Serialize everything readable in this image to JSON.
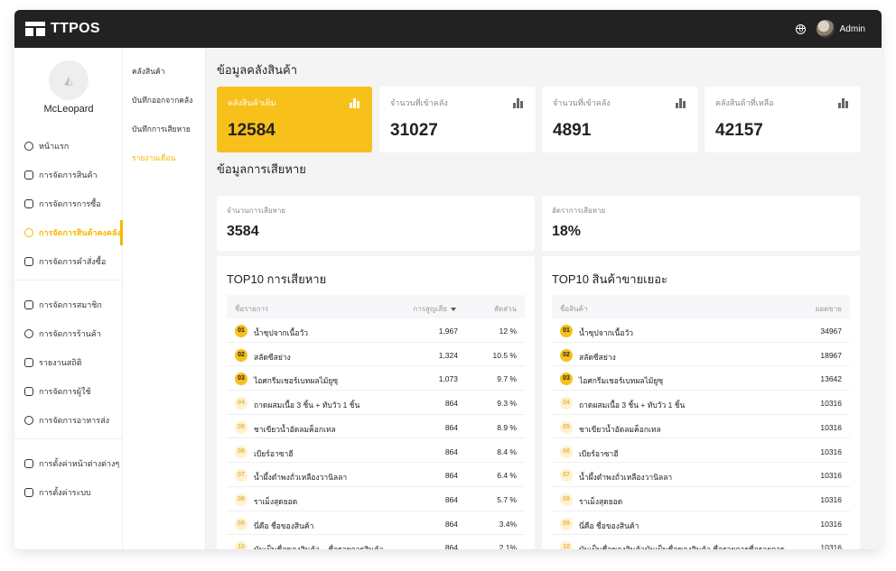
{
  "app": {
    "brand": "TTPOS",
    "user_name": "Admin"
  },
  "profile": {
    "name": "McLeopard"
  },
  "sidebar": {
    "items": [
      {
        "label": "หน้าแรก",
        "icon": "home-icon"
      },
      {
        "label": "การจัดการสินค้า",
        "icon": "box-icon"
      },
      {
        "label": "การจัดการการซื้อ",
        "icon": "cart-icon"
      },
      {
        "label": "การจัดการสินค้าคงคลัง",
        "icon": "warehouse-icon",
        "active": true
      },
      {
        "label": "การจัดการคำสั่งซื้อ",
        "icon": "order-icon"
      },
      {
        "label": "การจัดการสมาชิก",
        "icon": "member-icon"
      },
      {
        "label": "การจัดการร้านค้า",
        "icon": "store-icon"
      },
      {
        "label": "รายงานสถิติ",
        "icon": "report-icon"
      },
      {
        "label": "การจัดการผู้ใช้",
        "icon": "users-icon"
      },
      {
        "label": "การจัดการอาหารส่ง",
        "icon": "delivery-icon"
      },
      {
        "label": "การตั้งค่าหน้าต่างต่างๆ",
        "icon": "screen-settings-icon"
      },
      {
        "label": "การตั้งค่าระบบ",
        "icon": "gear-icon"
      }
    ]
  },
  "subnav": {
    "items": [
      {
        "label": "คลังสินค้า"
      },
      {
        "label": "บันทึกออกจากคลัง"
      },
      {
        "label": "บันทึกการเสียหาย"
      },
      {
        "label": "รายงานเดือน",
        "active": true
      }
    ]
  },
  "inventory": {
    "title": "ข้อมูลคลังสินค้า",
    "cards": [
      {
        "label": "คลังสินค้าเดิม",
        "value": "12584"
      },
      {
        "label": "จำนวนที่เข้าคลัง",
        "value": "31027"
      },
      {
        "label": "จำนวนที่เข้าคลัง",
        "value": "4891"
      },
      {
        "label": "คลังสินค้าที่เหลือ",
        "value": "42157"
      }
    ]
  },
  "damage": {
    "title": "ข้อมูลการเสียหาย",
    "cards": [
      {
        "label": "จำนวนการเสียหาย",
        "value": "3584"
      },
      {
        "label": "อัตราการเสียหาย",
        "value": "18%"
      }
    ]
  },
  "top_loss": {
    "title": "TOP10 การเสียหาย",
    "headers": {
      "name": "ชื่อรายการ",
      "amount": "การสูญเสีย",
      "ratio": "สัดส่วน"
    },
    "rows": [
      {
        "rank": "01",
        "name": "น้ำซุปจากเนื้อวัว",
        "amount": "1,967",
        "ratio": "12 %"
      },
      {
        "rank": "02",
        "name": "สลัดซีสย่าง",
        "amount": "1,324",
        "ratio": "10.5 %"
      },
      {
        "rank": "03",
        "name": "ไอศกรีมเชอร์เบทผลไม้ยูซุ",
        "amount": "1,073",
        "ratio": "9.7 %"
      },
      {
        "rank": "04",
        "name": "ถาดผสมเนื้อ 3 ชิ้น + ทับวัว 1 ชิ้น",
        "amount": "864",
        "ratio": "9.3 %"
      },
      {
        "rank": "05",
        "name": "ชาเขียวน้ำอัดลมค็อกเทล",
        "amount": "864",
        "ratio": "8.9 %"
      },
      {
        "rank": "06",
        "name": "เบียร์อาซาฮี",
        "amount": "864",
        "ratio": "8.4 %"
      },
      {
        "rank": "07",
        "name": "น้ำผึ้งดำพงถั่วเหลืองวานิลลา",
        "amount": "864",
        "ratio": "6.4 %"
      },
      {
        "rank": "08",
        "name": "ราเม็งสุดยอด",
        "amount": "864",
        "ratio": "5.7 %"
      },
      {
        "rank": "09",
        "name": "นี่คือ ชื่อของสินค้า",
        "amount": "864",
        "ratio": "3.4%"
      },
      {
        "rank": "10",
        "name": "มันเป็นชื่อของสินค้า... ชื่อรายการสินค้า",
        "amount": "864",
        "ratio": "2.1%"
      }
    ]
  },
  "top_sales": {
    "title": "TOP10 สินค้าขายเยอะ",
    "headers": {
      "name": "ชื่อสินค้า",
      "sales": "ยอดขาย"
    },
    "rows": [
      {
        "rank": "01",
        "name": "น้ำซุปจากเนื้อวัว",
        "sales": "34967"
      },
      {
        "rank": "02",
        "name": "สลัดซีสย่าง",
        "sales": "18967"
      },
      {
        "rank": "03",
        "name": "ไอศกรีมเชอร์เบทผลไม้ยูซุ",
        "sales": "13642"
      },
      {
        "rank": "04",
        "name": "ถาดผสมเนื้อ 3 ชิ้น + ทับวัว 1 ชิ้น",
        "sales": "10316"
      },
      {
        "rank": "05",
        "name": "ชาเขียวน้ำอัดลมค็อกเทล",
        "sales": "10316"
      },
      {
        "rank": "06",
        "name": "เบียร์อาซาฮี",
        "sales": "10316"
      },
      {
        "rank": "07",
        "name": "น้ำผึ้งดำพงถั่วเหลืองวานิลลา",
        "sales": "10316"
      },
      {
        "rank": "08",
        "name": "ราเม็งสุดยอด",
        "sales": "10316"
      },
      {
        "rank": "09",
        "name": "นี่คือ ชื่อของสินค้า",
        "sales": "10316"
      },
      {
        "rank": "10",
        "name": "มันเป็นชื่อของสินค้ามันเป็นชื่อของสินค้า ชื่อรายการชื่อรายการ",
        "sales": "10316"
      }
    ]
  },
  "colors": {
    "accent": "#f7c01b",
    "topbar": "#222222",
    "background": "#f4f4f4"
  }
}
